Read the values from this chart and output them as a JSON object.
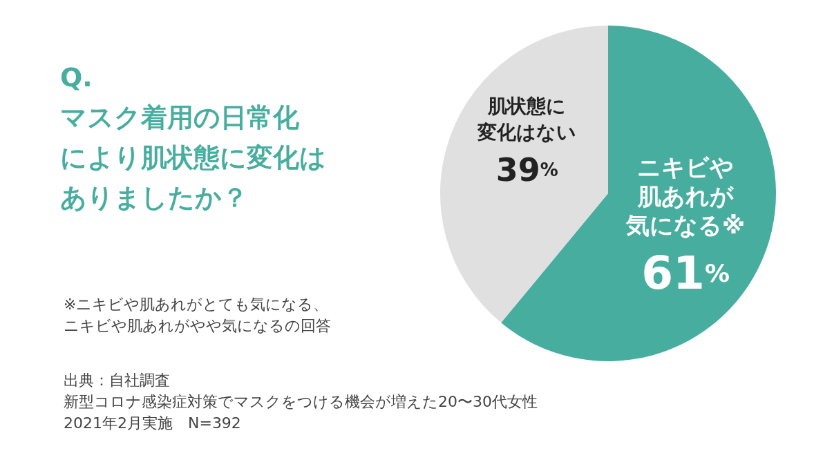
{
  "chart_data": {
    "type": "pie",
    "title": "Q.マスク着用の日常化により肌状態に変化はありましたか？",
    "categories": [
      "ニキビや肌あれが気になる※",
      "肌状態に変化はない"
    ],
    "values": [
      61,
      39
    ],
    "colors": [
      "#47ae9f",
      "#e0e0e0"
    ],
    "value_labels": [
      "61%",
      "39%"
    ],
    "legend": false,
    "annotations": [
      "※ニキビや肌あれがとても気になる、ニキビや肌あれがやや気になるの回答",
      "出典：自社調査",
      "新型コロナ感染症対策でマスクをつける機会が増えた20〜30代女性",
      "2021年2月実施　N=392"
    ]
  }
}
